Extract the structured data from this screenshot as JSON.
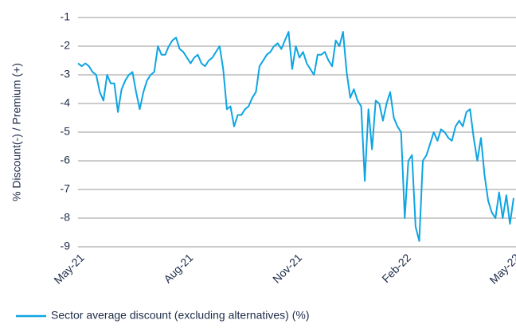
{
  "chart_data": {
    "type": "line",
    "y_label": "% Discount(-) / Premium (+)",
    "categories": [
      "May-21",
      null,
      null,
      null,
      null,
      null,
      null,
      null,
      null,
      null,
      null,
      null,
      null,
      null,
      null,
      null,
      null,
      null,
      null,
      null,
      null,
      null,
      null,
      null,
      null,
      null,
      null,
      null,
      null,
      null,
      "Aug-21",
      null,
      null,
      null,
      null,
      null,
      null,
      null,
      null,
      null,
      null,
      null,
      null,
      null,
      null,
      null,
      null,
      null,
      null,
      null,
      null,
      null,
      null,
      null,
      null,
      null,
      null,
      null,
      null,
      null,
      "Nov-21",
      null,
      null,
      null,
      null,
      null,
      null,
      null,
      null,
      null,
      null,
      null,
      null,
      null,
      null,
      null,
      null,
      null,
      null,
      null,
      null,
      null,
      null,
      null,
      null,
      null,
      null,
      null,
      null,
      null,
      "Feb-22",
      null,
      null,
      null,
      null,
      null,
      null,
      null,
      null,
      null,
      null,
      null,
      null,
      null,
      null,
      null,
      null,
      null,
      null,
      null,
      null,
      null,
      null,
      null,
      null,
      null,
      null,
      null,
      null,
      null,
      "May-22"
    ],
    "series": [
      {
        "name": "Sector average discount (excluding alternatives) (%)",
        "color": "#0ea5e2",
        "values": [
          -2.6,
          -2.7,
          -2.6,
          -2.7,
          -2.9,
          -3.0,
          -3.6,
          -3.9,
          -3.0,
          -3.3,
          -3.3,
          -4.3,
          -3.5,
          -3.2,
          -3.0,
          -2.9,
          -3.6,
          -4.2,
          -3.6,
          -3.2,
          -3.0,
          -2.9,
          -2.0,
          -2.3,
          -2.3,
          -2.0,
          -1.8,
          -1.7,
          -2.1,
          -2.2,
          -2.4,
          -2.6,
          -2.4,
          -2.3,
          -2.6,
          -2.7,
          -2.5,
          -2.4,
          -2.2,
          -2.0,
          -2.8,
          -4.2,
          -4.1,
          -4.8,
          -4.4,
          -4.4,
          -4.2,
          -4.1,
          -3.8,
          -3.6,
          -2.7,
          -2.5,
          -2.3,
          -2.2,
          -2.0,
          -1.9,
          -2.1,
          -1.8,
          -1.5,
          -2.8,
          -2.0,
          -2.4,
          -2.2,
          -2.6,
          -2.8,
          -3.0,
          -2.3,
          -2.3,
          -2.2,
          -2.5,
          -2.7,
          -1.8,
          -2.0,
          -1.5,
          -2.9,
          -3.8,
          -3.5,
          -3.9,
          -4.1,
          -6.7,
          -4.2,
          -5.6,
          -3.9,
          -4.0,
          -4.6,
          -4.0,
          -3.6,
          -4.5,
          -4.8,
          -5.0,
          -8.0,
          -6.0,
          -5.8,
          -8.3,
          -8.8,
          -6.0,
          -5.8,
          -5.4,
          -5.0,
          -5.3,
          -4.9,
          -5.0,
          -5.2,
          -5.3,
          -4.8,
          -4.6,
          -4.8,
          -4.3,
          -4.2,
          -5.2,
          -6.0,
          -5.2,
          -6.5,
          -7.4,
          -7.8,
          -8.0,
          -7.1,
          -8.0,
          -7.2,
          -8.2,
          -7.3
        ]
      }
    ],
    "ylim": [
      -9,
      -1
    ],
    "yticks": [
      -1,
      -2,
      -3,
      -4,
      -5,
      -6,
      -7,
      -8,
      -9
    ],
    "grid": true,
    "legend": "bottom"
  }
}
